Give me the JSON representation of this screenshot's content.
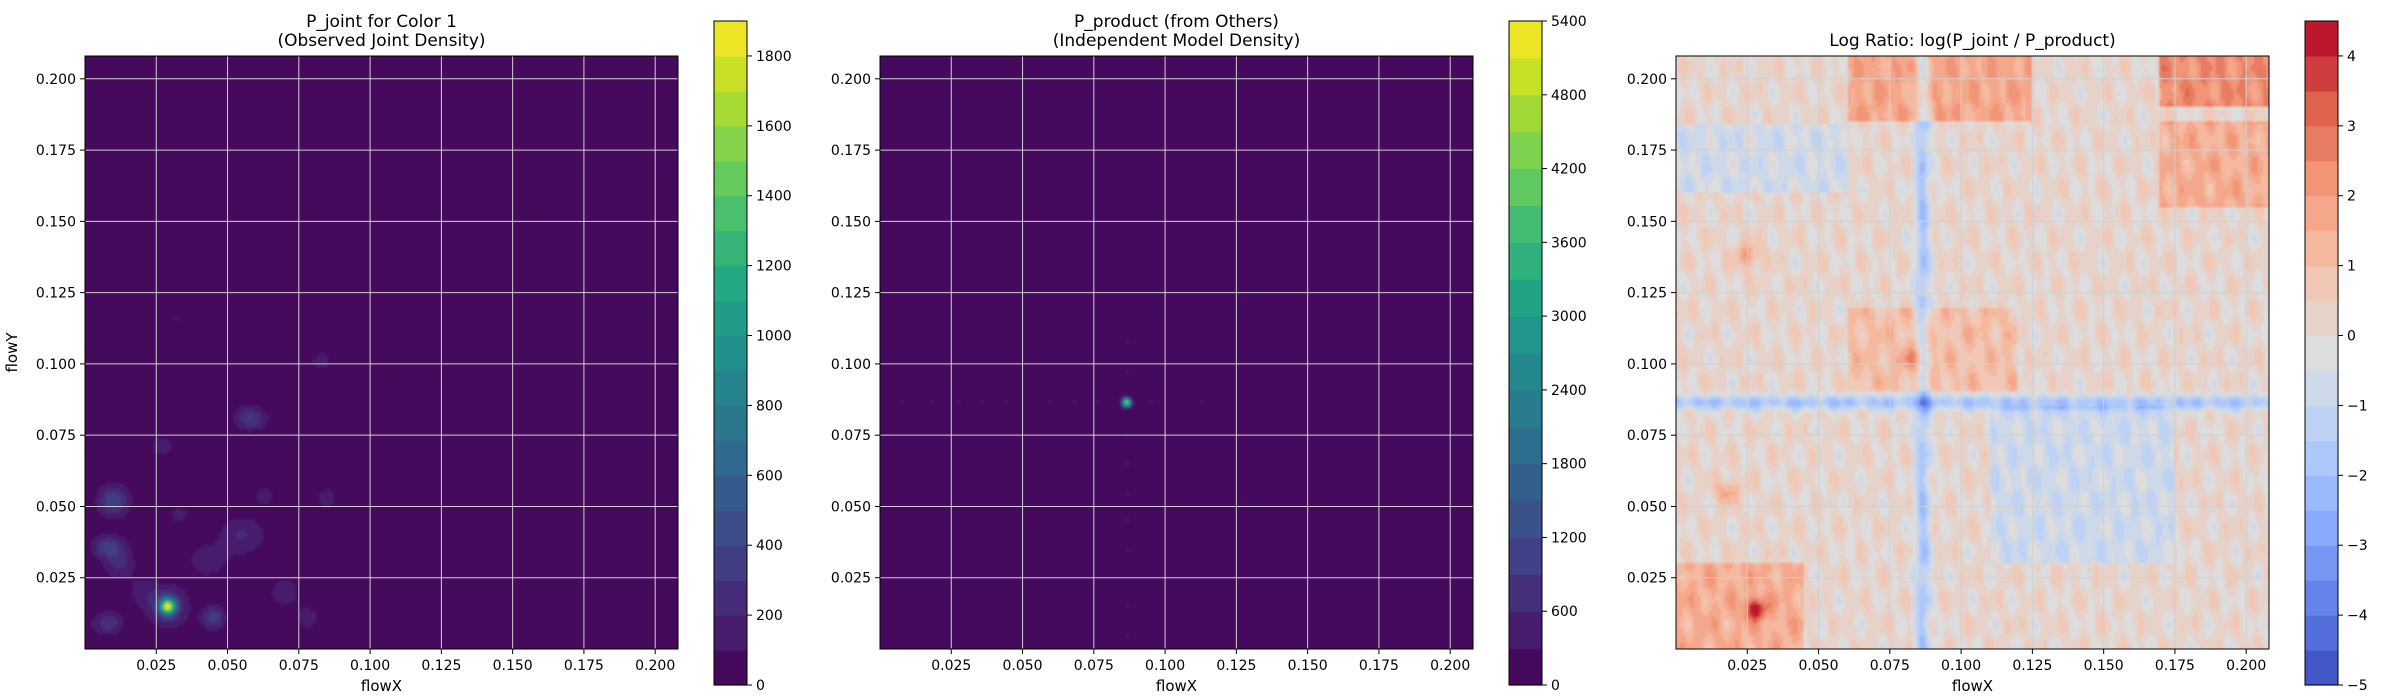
{
  "chart_data": [
    {
      "type": "heatmap",
      "title": "P_joint for Color 1\n(Observed Joint Density)",
      "xlabel": "flowX",
      "ylabel": "flowY",
      "xlim": [
        0.0,
        0.208
      ],
      "ylim": [
        0.0,
        0.208
      ],
      "xticks": [
        0.025,
        0.05,
        0.075,
        0.1,
        0.125,
        0.15,
        0.175,
        0.2
      ],
      "xtick_labels": [
        "0.025",
        "0.050",
        "0.075",
        "0.100",
        "0.125",
        "0.150",
        "0.175",
        "0.200"
      ],
      "yticks": [
        0.025,
        0.05,
        0.075,
        0.1,
        0.125,
        0.15,
        0.175,
        0.2
      ],
      "ytick_labels": [
        "0.025",
        "0.050",
        "0.075",
        "0.100",
        "0.125",
        "0.150",
        "0.175",
        "0.200"
      ],
      "grid": true,
      "colormap": "viridis",
      "colorbar": {
        "min": 0,
        "max": 1900,
        "levels": 19,
        "ticks": [
          0,
          200,
          400,
          600,
          800,
          1000,
          1200,
          1400,
          1600,
          1800
        ],
        "tick_labels": [
          "0",
          "200",
          "400",
          "600",
          "800",
          "1000",
          "1200",
          "1400",
          "1600",
          "1800"
        ]
      },
      "hotspots": [
        {
          "x": 0.029,
          "y": 0.015,
          "value": 1600,
          "sx": 0.0018,
          "sy": 0.0018
        },
        {
          "x": 0.029,
          "y": 0.015,
          "value": 350,
          "sx": 0.005,
          "sy": 0.005
        },
        {
          "x": 0.01,
          "y": 0.052,
          "value": 380,
          "sx": 0.004,
          "sy": 0.004
        },
        {
          "x": 0.008,
          "y": 0.036,
          "value": 330,
          "sx": 0.004,
          "sy": 0.003
        },
        {
          "x": 0.012,
          "y": 0.03,
          "value": 220,
          "sx": 0.004,
          "sy": 0.004
        },
        {
          "x": 0.045,
          "y": 0.011,
          "value": 350,
          "sx": 0.003,
          "sy": 0.003
        },
        {
          "x": 0.008,
          "y": 0.009,
          "value": 280,
          "sx": 0.004,
          "sy": 0.003
        },
        {
          "x": 0.058,
          "y": 0.081,
          "value": 320,
          "sx": 0.004,
          "sy": 0.003
        },
        {
          "x": 0.055,
          "y": 0.04,
          "value": 210,
          "sx": 0.006,
          "sy": 0.005
        },
        {
          "x": 0.043,
          "y": 0.031,
          "value": 190,
          "sx": 0.005,
          "sy": 0.004
        },
        {
          "x": 0.07,
          "y": 0.02,
          "value": 170,
          "sx": 0.004,
          "sy": 0.004
        },
        {
          "x": 0.078,
          "y": 0.011,
          "value": 180,
          "sx": 0.003,
          "sy": 0.003
        },
        {
          "x": 0.085,
          "y": 0.053,
          "value": 160,
          "sx": 0.003,
          "sy": 0.003
        },
        {
          "x": 0.083,
          "y": 0.101,
          "value": 150,
          "sx": 0.003,
          "sy": 0.003
        },
        {
          "x": 0.027,
          "y": 0.071,
          "value": 150,
          "sx": 0.004,
          "sy": 0.003
        },
        {
          "x": 0.033,
          "y": 0.047,
          "value": 120,
          "sx": 0.004,
          "sy": 0.004
        },
        {
          "x": 0.02,
          "y": 0.02,
          "value": 130,
          "sx": 0.004,
          "sy": 0.004
        },
        {
          "x": 0.063,
          "y": 0.054,
          "value": 120,
          "sx": 0.004,
          "sy": 0.004
        },
        {
          "x": 0.032,
          "y": 0.116,
          "value": 110,
          "sx": 0.002,
          "sy": 0.002
        }
      ]
    },
    {
      "type": "heatmap",
      "title": "P_product (from Others)\n(Independent Model Density)",
      "xlabel": "flowX",
      "ylabel": "",
      "xlim": [
        0.0,
        0.208
      ],
      "ylim": [
        0.0,
        0.208
      ],
      "xticks": [
        0.025,
        0.05,
        0.075,
        0.1,
        0.125,
        0.15,
        0.175,
        0.2
      ],
      "xtick_labels": [
        "0.025",
        "0.050",
        "0.075",
        "0.100",
        "0.125",
        "0.150",
        "0.175",
        "0.200"
      ],
      "yticks": [
        0.025,
        0.05,
        0.075,
        0.1,
        0.125,
        0.15,
        0.175,
        0.2
      ],
      "ytick_labels": [
        "0.025",
        "0.050",
        "0.075",
        "0.100",
        "0.125",
        "0.150",
        "0.175",
        "0.200"
      ],
      "grid": true,
      "colormap": "viridis",
      "colorbar": {
        "min": 0,
        "max": 5400,
        "levels": 18,
        "ticks": [
          0,
          600,
          1200,
          1800,
          2400,
          3000,
          3600,
          4200,
          4800,
          5400
        ],
        "tick_labels": [
          "0",
          "600",
          "1200",
          "1800",
          "2400",
          "3000",
          "3600",
          "4200",
          "4800",
          "5400"
        ]
      },
      "hotspots": [
        {
          "x": 0.0865,
          "y": 0.0865,
          "value": 4400,
          "sx": 0.0012,
          "sy": 0.0012
        }
      ],
      "streaks": [
        {
          "axis": "x",
          "at": 0.0865,
          "centers": [
            0.008,
            0.018,
            0.028,
            0.036,
            0.044,
            0.052,
            0.06,
            0.068,
            0.076,
            0.095,
            0.104,
            0.113
          ],
          "value": 330
        },
        {
          "axis": "y",
          "at": 0.0865,
          "centers": [
            0.005,
            0.015,
            0.025,
            0.035,
            0.045,
            0.055,
            0.065,
            0.075,
            0.097,
            0.108
          ],
          "value": 330
        }
      ]
    },
    {
      "type": "heatmap",
      "title": "Log Ratio: log(P_joint / P_product)",
      "xlabel": "flowX",
      "ylabel": "",
      "xlim": [
        0.0,
        0.208
      ],
      "ylim": [
        0.0,
        0.208
      ],
      "xticks": [
        0.025,
        0.05,
        0.075,
        0.1,
        0.125,
        0.15,
        0.175,
        0.2
      ],
      "xtick_labels": [
        "0.025",
        "0.050",
        "0.075",
        "0.100",
        "0.125",
        "0.150",
        "0.175",
        "0.200"
      ],
      "yticks": [
        0.025,
        0.05,
        0.075,
        0.1,
        0.125,
        0.15,
        0.175,
        0.2
      ],
      "ytick_labels": [
        "0.025",
        "0.050",
        "0.075",
        "0.100",
        "0.125",
        "0.150",
        "0.175",
        "0.200"
      ],
      "grid": true,
      "colormap": "coolwarm",
      "colorbar": {
        "min": -5,
        "max": 4.5,
        "levels": 19,
        "ticks": [
          -5,
          -4,
          -3,
          -2,
          -1,
          0,
          1,
          2,
          3,
          4
        ],
        "tick_labels": [
          "−5",
          "−4",
          "−3",
          "−2",
          "−1",
          "0",
          "1",
          "2",
          "3",
          "4"
        ]
      },
      "bands": [
        {
          "axis": "x",
          "at": 0.0865,
          "value": -2.0
        },
        {
          "axis": "y",
          "at": 0.0865,
          "value": -2.0
        }
      ],
      "regions": [
        {
          "x0": 0.06,
          "x1": 0.125,
          "y0": 0.185,
          "y1": 0.208,
          "value": 1.6
        },
        {
          "x0": 0.17,
          "x1": 0.208,
          "y0": 0.19,
          "y1": 0.208,
          "value": 2.2
        },
        {
          "x0": 0.17,
          "x1": 0.208,
          "y0": 0.155,
          "y1": 0.185,
          "value": 1.4
        },
        {
          "x0": 0.11,
          "x1": 0.175,
          "y0": 0.03,
          "y1": 0.085,
          "value": -0.9
        },
        {
          "x0": 0.0,
          "x1": 0.06,
          "y0": 0.16,
          "y1": 0.184,
          "value": -0.8
        },
        {
          "x0": 0.0,
          "x1": 0.045,
          "y0": 0.0,
          "y1": 0.03,
          "value": 1.4
        },
        {
          "x0": 0.06,
          "x1": 0.12,
          "y0": 0.09,
          "y1": 0.12,
          "value": 0.9
        }
      ],
      "hotspots": [
        {
          "x": 0.028,
          "y": 0.014,
          "value": 3.3,
          "sx": 0.0025,
          "sy": 0.0025
        },
        {
          "x": 0.025,
          "y": 0.138,
          "value": 1.8,
          "sx": 0.003,
          "sy": 0.003
        },
        {
          "x": 0.018,
          "y": 0.055,
          "value": 1.6,
          "sx": 0.003,
          "sy": 0.003
        },
        {
          "x": 0.084,
          "y": 0.102,
          "value": 1.6,
          "sx": 0.003,
          "sy": 0.003
        }
      ]
    }
  ]
}
